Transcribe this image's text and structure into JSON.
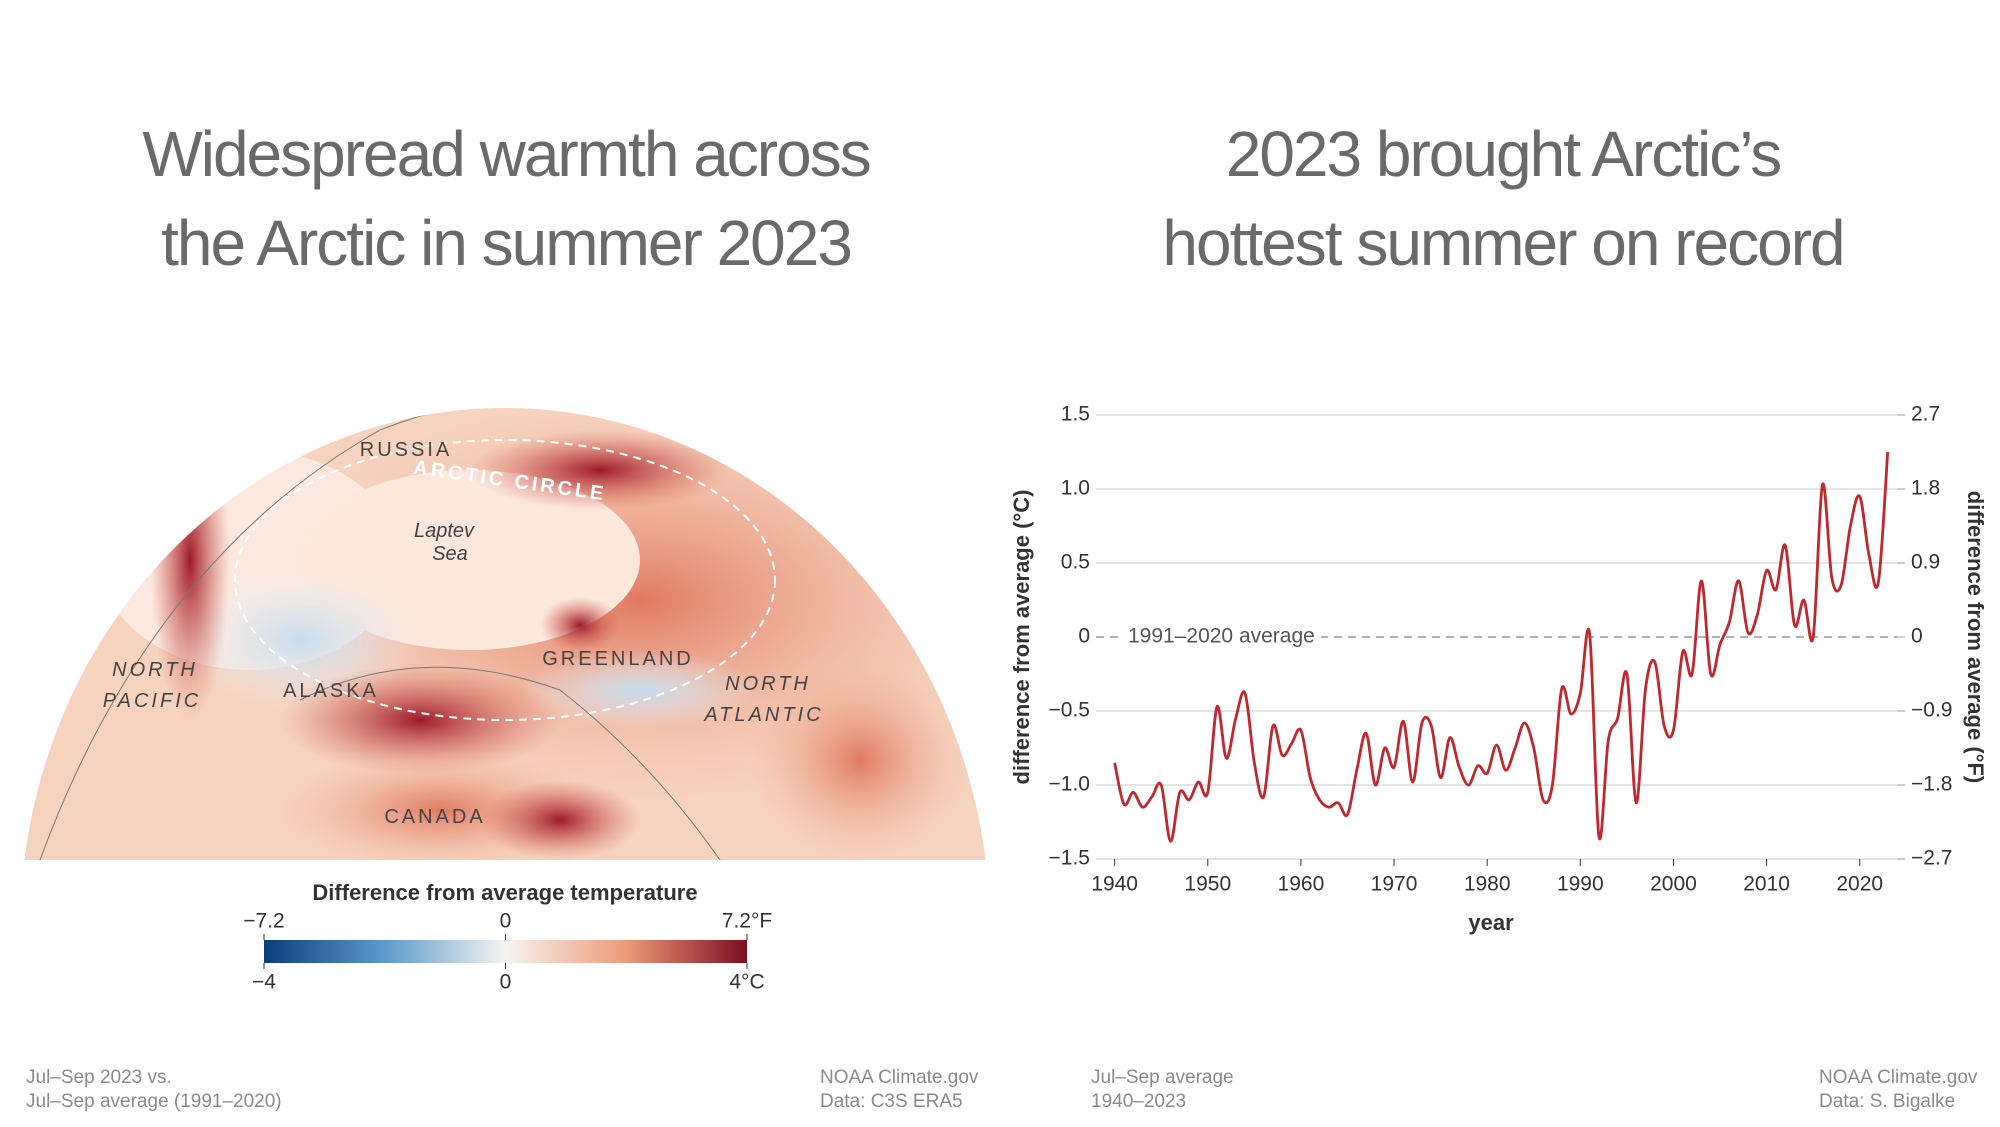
{
  "map_panel": {
    "title": [
      "Widespread warmth across",
      "the Arctic in summer 2023"
    ],
    "labels": {
      "russia": "RUSSIA",
      "arctic_circle": "ARCTIC CIRCLE",
      "laptev": [
        "Laptev",
        "Sea"
      ],
      "greenland": "GREENLAND",
      "north_pacific": [
        "NORTH",
        "PACIFIC"
      ],
      "alaska": "ALASKA",
      "north_atlantic": [
        "NORTH",
        "ATLANTIC"
      ],
      "canada": "CANADA"
    },
    "colorbar": {
      "title": "Difference from average temperature",
      "lim": [
        -4,
        4
      ],
      "ticks_c": [
        {
          "value": -4,
          "label": "−4"
        },
        0,
        {
          "value": 4,
          "label": "4°C"
        }
      ],
      "ticks_f": [
        {
          "value": -7.2,
          "label": "−7.2"
        },
        0,
        {
          "value": 7.2,
          "label": "7.2°F"
        }
      ],
      "f_lim": [
        -7.2,
        7.2
      ]
    },
    "note": [
      "Jul–Sep 2023 vs.",
      "Jul–Sep average (1991–2020)"
    ],
    "credit": [
      "NOAA Climate.gov",
      "Data: C3S ERA5"
    ]
  },
  "chart_data": {
    "type": "line",
    "title": [
      "2023 brought Arctic’s",
      "hottest summer on record"
    ],
    "x": [
      1940,
      1941,
      1942,
      1943,
      1944,
      1945,
      1946,
      1947,
      1948,
      1949,
      1950,
      1951,
      1952,
      1953,
      1954,
      1955,
      1956,
      1957,
      1958,
      1959,
      1960,
      1961,
      1962,
      1963,
      1964,
      1965,
      1966,
      1967,
      1968,
      1969,
      1970,
      1971,
      1972,
      1973,
      1974,
      1975,
      1976,
      1977,
      1978,
      1979,
      1980,
      1981,
      1982,
      1983,
      1984,
      1985,
      1986,
      1987,
      1988,
      1989,
      1990,
      1991,
      1992,
      1993,
      1994,
      1995,
      1996,
      1997,
      1998,
      1999,
      2000,
      2001,
      2002,
      2003,
      2004,
      2005,
      2006,
      2007,
      2008,
      2009,
      2010,
      2011,
      2012,
      2013,
      2014,
      2015,
      2016,
      2017,
      2018,
      2019,
      2020,
      2021,
      2022,
      2023
    ],
    "values": [
      -0.85,
      -1.13,
      -1.05,
      -1.15,
      -1.08,
      -1.0,
      -1.38,
      -1.05,
      -1.1,
      -0.98,
      -1.05,
      -0.47,
      -0.82,
      -0.55,
      -0.38,
      -0.85,
      -1.08,
      -0.6,
      -0.8,
      -0.72,
      -0.63,
      -0.95,
      -1.1,
      -1.15,
      -1.12,
      -1.2,
      -0.9,
      -0.65,
      -1.0,
      -0.75,
      -0.88,
      -0.57,
      -0.98,
      -0.58,
      -0.6,
      -0.95,
      -0.68,
      -0.88,
      -1.0,
      -0.87,
      -0.92,
      -0.73,
      -0.9,
      -0.75,
      -0.58,
      -0.75,
      -1.1,
      -1.0,
      -0.35,
      -0.52,
      -0.38,
      0.02,
      -1.35,
      -0.7,
      -0.55,
      -0.25,
      -1.12,
      -0.35,
      -0.17,
      -0.6,
      -0.63,
      -0.1,
      -0.25,
      0.38,
      -0.25,
      -0.05,
      0.1,
      0.38,
      0.03,
      0.15,
      0.45,
      0.32,
      0.62,
      0.08,
      0.25,
      0.0,
      1.03,
      0.4,
      0.35,
      0.75,
      0.95,
      0.55,
      0.37,
      1.25
    ],
    "color": "#c1272d",
    "xlim": [
      1938,
      2024
    ],
    "xticks": [
      1940,
      1950,
      1960,
      1970,
      1980,
      1990,
      2000,
      2010,
      2020
    ],
    "ylim": [
      -1.5,
      1.5
    ],
    "yticks": [
      {
        "value": -1.5,
        "label": "−1.5"
      },
      {
        "value": -1,
        "label": "−1.0"
      },
      {
        "value": -0.5,
        "label": "−0.5"
      },
      0,
      0.5,
      {
        "value": 1,
        "label": "1.0"
      },
      1.5
    ],
    "y2lim": [
      -2.7,
      2.7
    ],
    "y2ticks": [
      {
        "value": -2.7,
        "label": "−2.7"
      },
      {
        "value": -1.8,
        "label": "−1.8"
      },
      {
        "value": -0.9,
        "label": "−0.9"
      },
      0,
      0.9,
      1.8,
      2.7
    ],
    "ylabel": "difference from average (°C)",
    "y2label": "difference from average (°F)",
    "xlabel": "year",
    "grid": true,
    "reference_line": {
      "value": 0,
      "label": "1991–2020 average"
    },
    "note": [
      "Jul–Sep average",
      "1940–2023"
    ],
    "credit": [
      "NOAA Climate.gov",
      "Data: S. Bigalke"
    ]
  }
}
